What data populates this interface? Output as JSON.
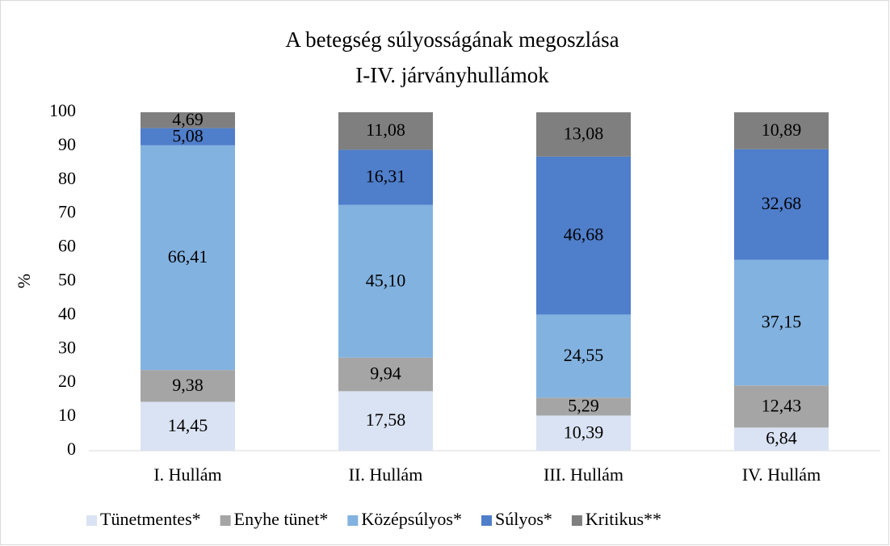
{
  "chart_data": {
    "type": "stacked_bar",
    "title": [
      "A betegség súlyosságának megoszlása",
      "I-IV. járványhullámok"
    ],
    "y_label": "%",
    "categories": [
      "I. Hullám",
      "II. Hullám",
      "III. Hullám",
      "IV. Hullám"
    ],
    "series": [
      {
        "name": "Tünetmentes*",
        "color": "#dae3f3",
        "values": [
          14.45,
          17.58,
          10.39,
          6.84
        ],
        "value_labels": [
          "14,45",
          "17,58",
          "10,39",
          "6,84"
        ]
      },
      {
        "name": "Enyhe tünet*",
        "color": "#a5a5a5",
        "values": [
          9.38,
          9.94,
          5.29,
          12.43
        ],
        "value_labels": [
          "9,38",
          "9,94",
          "5,29",
          "12,43"
        ]
      },
      {
        "name": "Középsúlyos*",
        "color": "#82b2e0",
        "values": [
          66.41,
          45.1,
          24.55,
          37.15
        ],
        "value_labels": [
          "66,41",
          "45,10",
          "24,55",
          "37,15"
        ]
      },
      {
        "name": "Súlyos*",
        "color": "#4f7ecb",
        "values": [
          5.08,
          16.31,
          46.68,
          32.68
        ],
        "value_labels": [
          "5,08",
          "16,31",
          "46,68",
          "32,68"
        ]
      },
      {
        "name": "Kritikus**",
        "color": "#7f7f7f",
        "values": [
          4.69,
          11.08,
          13.08,
          10.89
        ],
        "value_labels": [
          "4,69",
          "11,08",
          "13,08",
          "10,89"
        ]
      }
    ],
    "ylim": [
      0,
      100
    ],
    "yticks": [
      0,
      10,
      20,
      30,
      40,
      50,
      60,
      70,
      80,
      90,
      100
    ],
    "grid": false,
    "legend": "bottom"
  }
}
